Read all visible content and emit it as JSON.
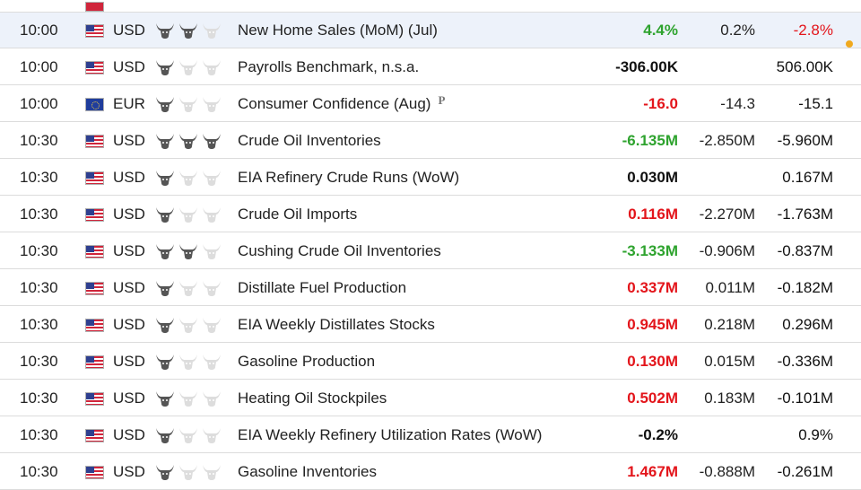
{
  "colors": {
    "positive": "#2ea32e",
    "negative": "#e3151b",
    "neutral": "#111111",
    "highlight_row": "#edf2fa",
    "bull_active": "#555555",
    "bull_inactive": "#dddddd",
    "alert_dot": "#f0a91e"
  },
  "events": [
    {
      "time": "10:00",
      "flag_icon": "us-flag-icon",
      "currency": "USD",
      "importance": 2,
      "event": "New Home Sales (MoM) (Jul)",
      "preliminary": "",
      "actual": "4.4%",
      "actual_trend": "positive",
      "forecast": "0.2%",
      "previous": "-2.8%",
      "previous_trend": "negative",
      "highlighted": true,
      "alert": true
    },
    {
      "time": "10:00",
      "flag_icon": "us-flag-icon",
      "currency": "USD",
      "importance": 1,
      "event": "Payrolls Benchmark, n.s.a.",
      "preliminary": "",
      "actual": "-306.00K",
      "actual_trend": "neutral",
      "forecast": "",
      "previous": "506.00K",
      "previous_trend": "neutral",
      "highlighted": false,
      "alert": false
    },
    {
      "time": "10:00",
      "flag_icon": "eu-flag-icon",
      "currency": "EUR",
      "importance": 1,
      "event": "Consumer Confidence (Aug)",
      "preliminary": "P",
      "actual": "-16.0",
      "actual_trend": "negative",
      "forecast": "-14.3",
      "previous": "-15.1",
      "previous_trend": "neutral",
      "highlighted": false,
      "alert": false
    },
    {
      "time": "10:30",
      "flag_icon": "us-flag-icon",
      "currency": "USD",
      "importance": 3,
      "event": "Crude Oil Inventories",
      "preliminary": "",
      "actual": "-6.135M",
      "actual_trend": "positive",
      "forecast": "-2.850M",
      "previous": "-5.960M",
      "previous_trend": "neutral",
      "highlighted": false,
      "alert": false
    },
    {
      "time": "10:30",
      "flag_icon": "us-flag-icon",
      "currency": "USD",
      "importance": 1,
      "event": "EIA Refinery Crude Runs (WoW)",
      "preliminary": "",
      "actual": "0.030M",
      "actual_trend": "neutral",
      "forecast": "",
      "previous": "0.167M",
      "previous_trend": "neutral",
      "highlighted": false,
      "alert": false
    },
    {
      "time": "10:30",
      "flag_icon": "us-flag-icon",
      "currency": "USD",
      "importance": 1,
      "event": "Crude Oil Imports",
      "preliminary": "",
      "actual": "0.116M",
      "actual_trend": "negative",
      "forecast": "-2.270M",
      "previous": "-1.763M",
      "previous_trend": "neutral",
      "highlighted": false,
      "alert": false
    },
    {
      "time": "10:30",
      "flag_icon": "us-flag-icon",
      "currency": "USD",
      "importance": 2,
      "event": "Cushing Crude Oil Inventories",
      "preliminary": "",
      "actual": "-3.133M",
      "actual_trend": "positive",
      "forecast": "-0.906M",
      "previous": "-0.837M",
      "previous_trend": "neutral",
      "highlighted": false,
      "alert": false
    },
    {
      "time": "10:30",
      "flag_icon": "us-flag-icon",
      "currency": "USD",
      "importance": 1,
      "event": "Distillate Fuel Production",
      "preliminary": "",
      "actual": "0.337M",
      "actual_trend": "negative",
      "forecast": "0.011M",
      "previous": "-0.182M",
      "previous_trend": "neutral",
      "highlighted": false,
      "alert": false
    },
    {
      "time": "10:30",
      "flag_icon": "us-flag-icon",
      "currency": "USD",
      "importance": 1,
      "event": "EIA Weekly Distillates Stocks",
      "preliminary": "",
      "actual": "0.945M",
      "actual_trend": "negative",
      "forecast": "0.218M",
      "previous": "0.296M",
      "previous_trend": "neutral",
      "highlighted": false,
      "alert": false
    },
    {
      "time": "10:30",
      "flag_icon": "us-flag-icon",
      "currency": "USD",
      "importance": 1,
      "event": "Gasoline Production",
      "preliminary": "",
      "actual": "0.130M",
      "actual_trend": "negative",
      "forecast": "0.015M",
      "previous": "-0.336M",
      "previous_trend": "neutral",
      "highlighted": false,
      "alert": false
    },
    {
      "time": "10:30",
      "flag_icon": "us-flag-icon",
      "currency": "USD",
      "importance": 1,
      "event": "Heating Oil Stockpiles",
      "preliminary": "",
      "actual": "0.502M",
      "actual_trend": "negative",
      "forecast": "0.183M",
      "previous": "-0.101M",
      "previous_trend": "neutral",
      "highlighted": false,
      "alert": false
    },
    {
      "time": "10:30",
      "flag_icon": "us-flag-icon",
      "currency": "USD",
      "importance": 1,
      "event": "EIA Weekly Refinery Utilization Rates (WoW)",
      "preliminary": "",
      "actual": "-0.2%",
      "actual_trend": "neutral",
      "forecast": "",
      "previous": "0.9%",
      "previous_trend": "neutral",
      "highlighted": false,
      "alert": false
    },
    {
      "time": "10:30",
      "flag_icon": "us-flag-icon",
      "currency": "USD",
      "importance": 1,
      "event": "Gasoline Inventories",
      "preliminary": "",
      "actual": "1.467M",
      "actual_trend": "negative",
      "forecast": "-0.888M",
      "previous": "-0.261M",
      "previous_trend": "neutral",
      "highlighted": false,
      "alert": false
    }
  ]
}
